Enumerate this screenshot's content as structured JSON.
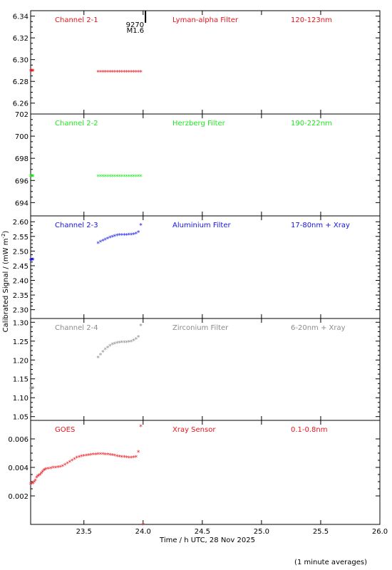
{
  "chart_data": {
    "type": "scatter",
    "ylabel": "Calibrated Signal / (mW m",
    "ylabel_sup": "-2",
    "ylabel_close": ")",
    "xlabel": "Time / h UTC, 28 Nov 2025",
    "footnote": "(1 minute averages)",
    "xlim": [
      23.05,
      26.0
    ],
    "xticks": [
      "23.5",
      "24.0",
      "24.5",
      "25.0",
      "25.5",
      "26.0"
    ],
    "flare": {
      "x": 24.02,
      "labels": [
        "9270",
        "M1.6"
      ]
    },
    "panels": [
      {
        "channel": "Channel 2-1",
        "filter": "Lyman-alpha Filter",
        "band": "120-123nm",
        "color": "#e8141b",
        "ylim": [
          6.25,
          6.345
        ],
        "yticks": [
          "6.26",
          "6.28",
          "6.30",
          "6.32",
          "6.34"
        ],
        "points": [
          [
            23.05,
            6.29
          ],
          [
            23.055,
            6.29
          ],
          [
            23.06,
            6.29
          ],
          [
            23.065,
            6.29
          ],
          [
            23.07,
            6.29
          ],
          [
            23.62,
            6.289
          ],
          [
            23.64,
            6.289
          ],
          [
            23.66,
            6.289
          ],
          [
            23.68,
            6.289
          ],
          [
            23.7,
            6.289
          ],
          [
            23.72,
            6.289
          ],
          [
            23.74,
            6.289
          ],
          [
            23.76,
            6.289
          ],
          [
            23.78,
            6.289
          ],
          [
            23.8,
            6.289
          ],
          [
            23.82,
            6.289
          ],
          [
            23.84,
            6.289
          ],
          [
            23.86,
            6.289
          ],
          [
            23.88,
            6.289
          ],
          [
            23.9,
            6.289
          ],
          [
            23.92,
            6.289
          ],
          [
            23.94,
            6.289
          ],
          [
            23.96,
            6.289
          ],
          [
            23.98,
            6.289
          ]
        ]
      },
      {
        "channel": "Channel 2-2",
        "filter": "Herzberg Filter",
        "band": "190-222nm",
        "color": "#1ee81e",
        "ylim": [
          692.8,
          702.0
        ],
        "yticks": [
          "694",
          "696",
          "698",
          "700",
          "702"
        ],
        "points": [
          [
            23.05,
            696.4
          ],
          [
            23.055,
            696.4
          ],
          [
            23.06,
            696.4
          ],
          [
            23.065,
            696.4
          ],
          [
            23.07,
            696.4
          ],
          [
            23.62,
            696.4
          ],
          [
            23.64,
            696.4
          ],
          [
            23.66,
            696.4
          ],
          [
            23.68,
            696.4
          ],
          [
            23.7,
            696.4
          ],
          [
            23.72,
            696.4
          ],
          [
            23.74,
            696.4
          ],
          [
            23.76,
            696.4
          ],
          [
            23.78,
            696.4
          ],
          [
            23.8,
            696.4
          ],
          [
            23.82,
            696.4
          ],
          [
            23.84,
            696.4
          ],
          [
            23.86,
            696.4
          ],
          [
            23.88,
            696.4
          ],
          [
            23.9,
            696.4
          ],
          [
            23.92,
            696.4
          ],
          [
            23.94,
            696.4
          ],
          [
            23.96,
            696.4
          ],
          [
            23.98,
            696.4
          ]
        ]
      },
      {
        "channel": "Channel 2-3",
        "filter": "Aluminium Filter",
        "band": "17-80nm + Xray",
        "color": "#1414e6",
        "ylim": [
          2.27,
          2.62
        ],
        "yticks": [
          "2.30",
          "2.35",
          "2.40",
          "2.45",
          "2.50",
          "2.55",
          "2.60"
        ],
        "points": [
          [
            23.05,
            2.47
          ],
          [
            23.055,
            2.47
          ],
          [
            23.06,
            2.47
          ],
          [
            23.065,
            2.472
          ],
          [
            23.07,
            2.472
          ],
          [
            23.62,
            2.528
          ],
          [
            23.64,
            2.532
          ],
          [
            23.66,
            2.536
          ],
          [
            23.68,
            2.54
          ],
          [
            23.7,
            2.544
          ],
          [
            23.72,
            2.547
          ],
          [
            23.74,
            2.55
          ],
          [
            23.76,
            2.552
          ],
          [
            23.78,
            2.554
          ],
          [
            23.8,
            2.555
          ],
          [
            23.82,
            2.556
          ],
          [
            23.84,
            2.556
          ],
          [
            23.86,
            2.556
          ],
          [
            23.88,
            2.557
          ],
          [
            23.9,
            2.557
          ],
          [
            23.92,
            2.558
          ],
          [
            23.94,
            2.56
          ],
          [
            23.96,
            2.565
          ],
          [
            23.98,
            2.59
          ]
        ]
      },
      {
        "channel": "Channel 2-4",
        "filter": "Zirconium Filter",
        "band": "6-20nm + Xray",
        "color": "#8c8c8c",
        "ylim": [
          1.04,
          1.31
        ],
        "yticks": [
          "1.05",
          "1.10",
          "1.15",
          "1.20",
          "1.25",
          "1.30"
        ],
        "points": [
          [
            23.05,
            1.125
          ],
          [
            23.055,
            1.125
          ],
          [
            23.06,
            1.125
          ],
          [
            23.065,
            1.126
          ],
          [
            23.07,
            1.126
          ],
          [
            23.62,
            1.207
          ],
          [
            23.64,
            1.215
          ],
          [
            23.66,
            1.222
          ],
          [
            23.68,
            1.229
          ],
          [
            23.7,
            1.234
          ],
          [
            23.72,
            1.238
          ],
          [
            23.74,
            1.242
          ],
          [
            23.76,
            1.244
          ],
          [
            23.78,
            1.246
          ],
          [
            23.8,
            1.247
          ],
          [
            23.82,
            1.248
          ],
          [
            23.84,
            1.248
          ],
          [
            23.86,
            1.248
          ],
          [
            23.88,
            1.249
          ],
          [
            23.9,
            1.25
          ],
          [
            23.92,
            1.252
          ],
          [
            23.94,
            1.256
          ],
          [
            23.96,
            1.262
          ],
          [
            23.98,
            1.292
          ]
        ]
      },
      {
        "channel": "GOES",
        "filter": "Xray Sensor",
        "band": "0.1-0.8nm",
        "color": "#e8141b",
        "ylim": [
          0.0,
          0.0073
        ],
        "yticks": [
          "0.002",
          "0.004",
          "0.006"
        ],
        "points": [
          [
            23.05,
            0.00285
          ],
          [
            23.06,
            0.00288
          ],
          [
            23.07,
            0.0029
          ],
          [
            23.08,
            0.003
          ],
          [
            23.09,
            0.0031
          ],
          [
            23.1,
            0.0033
          ],
          [
            23.11,
            0.0034
          ],
          [
            23.12,
            0.00345
          ],
          [
            23.13,
            0.0035
          ],
          [
            23.14,
            0.0036
          ],
          [
            23.15,
            0.0037
          ],
          [
            23.16,
            0.0038
          ],
          [
            23.17,
            0.00385
          ],
          [
            23.18,
            0.0039
          ],
          [
            23.2,
            0.00393
          ],
          [
            23.22,
            0.00396
          ],
          [
            23.24,
            0.004
          ],
          [
            23.26,
            0.004
          ],
          [
            23.28,
            0.00402
          ],
          [
            23.3,
            0.00405
          ],
          [
            23.32,
            0.0041
          ],
          [
            23.34,
            0.0042
          ],
          [
            23.36,
            0.0043
          ],
          [
            23.38,
            0.0044
          ],
          [
            23.4,
            0.0045
          ],
          [
            23.42,
            0.0046
          ],
          [
            23.44,
            0.0047
          ],
          [
            23.46,
            0.00475
          ],
          [
            23.48,
            0.0048
          ],
          [
            23.5,
            0.00482
          ],
          [
            23.52,
            0.00484
          ],
          [
            23.54,
            0.00487
          ],
          [
            23.56,
            0.0049
          ],
          [
            23.58,
            0.00492
          ],
          [
            23.6,
            0.00493
          ],
          [
            23.62,
            0.00494
          ],
          [
            23.64,
            0.00495
          ],
          [
            23.66,
            0.00494
          ],
          [
            23.68,
            0.00493
          ],
          [
            23.7,
            0.00492
          ],
          [
            23.72,
            0.0049
          ],
          [
            23.74,
            0.00488
          ],
          [
            23.76,
            0.00484
          ],
          [
            23.78,
            0.0048
          ],
          [
            23.8,
            0.00478
          ],
          [
            23.82,
            0.00476
          ],
          [
            23.84,
            0.00474
          ],
          [
            23.86,
            0.00472
          ],
          [
            23.88,
            0.00471
          ],
          [
            23.9,
            0.0047
          ],
          [
            23.92,
            0.00472
          ],
          [
            23.94,
            0.00475
          ],
          [
            23.96,
            0.0051
          ],
          [
            23.98,
            0.0069
          ],
          [
            24.0,
            0.0
          ]
        ]
      }
    ]
  }
}
